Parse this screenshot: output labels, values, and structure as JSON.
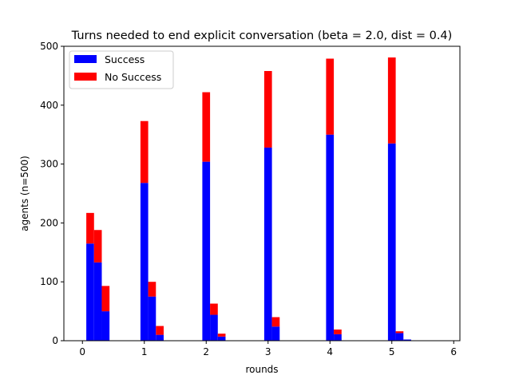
{
  "chart_data": {
    "type": "bar",
    "stacked": true,
    "title": "Turns needed to end explicit conversation (beta = 2.0, dist = 0.4)",
    "xlabel": "rounds",
    "ylabel": "agents (n=500)",
    "xlim": [
      -0.3,
      6.1
    ],
    "ylim": [
      0,
      500
    ],
    "xticks": [
      0,
      1,
      2,
      3,
      4,
      5,
      6
    ],
    "yticks": [
      0,
      100,
      200,
      300,
      400,
      500
    ],
    "bin_width": 0.125,
    "x": [
      0.125,
      0.25,
      0.375,
      1.0,
      1.125,
      1.25,
      2.0,
      2.125,
      2.25,
      3.0,
      3.125,
      4.0,
      4.125,
      5.0,
      5.125,
      5.25
    ],
    "series": [
      {
        "name": "Success",
        "color": "#0000ff",
        "values": [
          165,
          133,
          50,
          268,
          75,
          10,
          304,
          44,
          7,
          328,
          24,
          350,
          11,
          335,
          13,
          2
        ]
      },
      {
        "name": "No Success",
        "color": "#ff0000",
        "values": [
          52,
          55,
          43,
          105,
          25,
          15,
          118,
          19,
          5,
          130,
          16,
          129,
          8,
          146,
          3,
          0
        ]
      }
    ],
    "legend_position": "top-left",
    "grid": false
  }
}
